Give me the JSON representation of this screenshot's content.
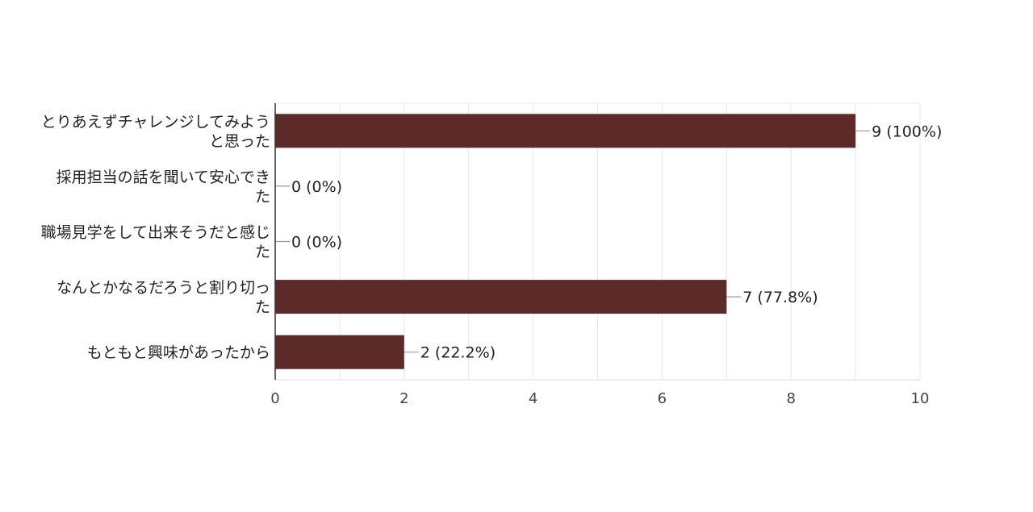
{
  "chart_data": {
    "type": "bar",
    "orientation": "horizontal",
    "title": "",
    "xlabel": "",
    "ylabel": "",
    "categories": [
      [
        "とりあえずチャレンジしてみよう",
        "と思った"
      ],
      [
        "採用担当の話を聞いて安心でき",
        "た"
      ],
      [
        "職場見学をして出来そうだと感じ",
        "た"
      ],
      [
        "なんとかなるだろうと割り切っ",
        "た"
      ],
      [
        "もともと興味があったから"
      ]
    ],
    "values": [
      9,
      0,
      0,
      7,
      2
    ],
    "data_labels": [
      "9 (100%)",
      "0 (0%)",
      "0 (0%)",
      "7 (77.8%)",
      "2 (22.2%)"
    ],
    "xlim": [
      0,
      10
    ],
    "xticks": [
      "0",
      "2",
      "4",
      "6",
      "8",
      "10"
    ],
    "grid": true,
    "legend": "none",
    "colors": {
      "bar": "#5c2a28",
      "grid": "#e8e8e8",
      "axis": "#333333",
      "leader": "#999999"
    }
  }
}
